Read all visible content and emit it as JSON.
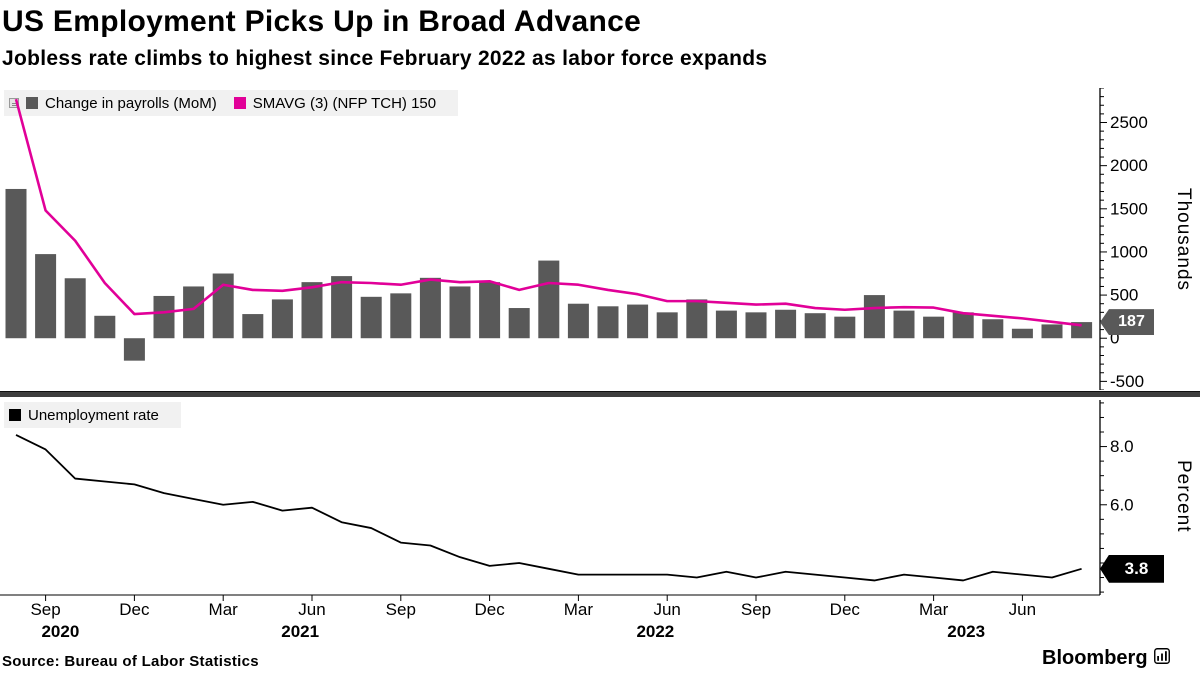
{
  "header": {
    "title": "US Employment Picks Up in Broad Advance",
    "subtitle": "Jobless rate climbs to highest since February 2022 as labor force expands"
  },
  "colors": {
    "bar": "#595959",
    "smavg": "#e10098",
    "unemployment": "#000000",
    "badge_payrolls": "#595959",
    "badge_unemployment": "#000000",
    "legend_bg": "#f1f1f1"
  },
  "top_chart": {
    "legend": [
      {
        "label": "Change in payrolls (MoM)",
        "color": "#595959"
      },
      {
        "label": "SMAVG (3) (NFP TCH) 150",
        "color": "#e10098"
      }
    ],
    "axis_label": "Thousands",
    "yticks": [
      {
        "value": 2500,
        "label": "2500"
      },
      {
        "value": 2000,
        "label": "2000"
      },
      {
        "value": 1500,
        "label": "1500"
      },
      {
        "value": 1000,
        "label": "1000"
      },
      {
        "value": 500,
        "label": "500"
      },
      {
        "value": 0,
        "label": "0"
      },
      {
        "value": -500,
        "label": "-500"
      }
    ],
    "last_value_label": "187"
  },
  "bottom_chart": {
    "legend": [
      {
        "label": "Unemployment rate",
        "color": "#000000"
      }
    ],
    "axis_label": "Percent",
    "yticks": [
      {
        "value": 8,
        "label": "8.0"
      },
      {
        "value": 6,
        "label": "6.0"
      }
    ],
    "last_value_label": "3.8"
  },
  "x_axis": {
    "months": [
      {
        "label": "Sep",
        "i": 1
      },
      {
        "label": "Dec",
        "i": 4
      },
      {
        "label": "Mar",
        "i": 7
      },
      {
        "label": "Jun",
        "i": 10
      },
      {
        "label": "Sep",
        "i": 13
      },
      {
        "label": "Dec",
        "i": 16
      },
      {
        "label": "Mar",
        "i": 19
      },
      {
        "label": "Jun",
        "i": 22
      },
      {
        "label": "Sep",
        "i": 25
      },
      {
        "label": "Dec",
        "i": 28
      },
      {
        "label": "Mar",
        "i": 31
      },
      {
        "label": "Jun",
        "i": 34
      }
    ],
    "years": [
      {
        "label": "2020",
        "i": 1.5
      },
      {
        "label": "2021",
        "i": 9.6
      },
      {
        "label": "2022",
        "i": 21.6
      },
      {
        "label": "2023",
        "i": 32.1
      }
    ]
  },
  "footer": {
    "source": "Source: Bureau of Labor Statistics",
    "brand": "Bloomberg"
  },
  "chart_data": [
    {
      "type": "bar",
      "title": "Change in payrolls (MoM)",
      "ylabel": "Thousands",
      "ylim": [
        -600,
        2900
      ],
      "legend_position": "top-left",
      "grid": false,
      "x": [
        "2020-08",
        "2020-09",
        "2020-10",
        "2020-11",
        "2020-12",
        "2021-01",
        "2021-02",
        "2021-03",
        "2021-04",
        "2021-05",
        "2021-06",
        "2021-07",
        "2021-08",
        "2021-09",
        "2021-10",
        "2021-11",
        "2021-12",
        "2022-01",
        "2022-02",
        "2022-03",
        "2022-04",
        "2022-05",
        "2022-06",
        "2022-07",
        "2022-08",
        "2022-09",
        "2022-10",
        "2022-11",
        "2022-12",
        "2023-01",
        "2023-02",
        "2023-03",
        "2023-04",
        "2023-05",
        "2023-06",
        "2023-07",
        "2023-08"
      ],
      "series": [
        {
          "name": "Change in payrolls (MoM)",
          "type": "bar",
          "values": [
            1730,
            975,
            695,
            260,
            -260,
            490,
            600,
            750,
            280,
            450,
            650,
            720,
            480,
            520,
            700,
            600,
            650,
            350,
            900,
            400,
            370,
            390,
            300,
            450,
            320,
            300,
            330,
            290,
            250,
            500,
            320,
            250,
            300,
            220,
            110,
            160,
            187
          ]
        },
        {
          "name": "SMAVG (3) (NFP TCH) 150",
          "type": "line",
          "values": [
            2770,
            1480,
            1130,
            640,
            280,
            300,
            340,
            620,
            560,
            550,
            590,
            650,
            640,
            620,
            680,
            650,
            660,
            560,
            640,
            620,
            560,
            510,
            430,
            430,
            410,
            390,
            400,
            350,
            330,
            350,
            360,
            355,
            290,
            260,
            230,
            190,
            150
          ]
        }
      ]
    },
    {
      "type": "line",
      "title": "Unemployment rate",
      "ylabel": "Percent",
      "ylim": [
        2.9,
        9.6
      ],
      "legend_position": "top-left",
      "grid": false,
      "x": [
        "2020-08",
        "2020-09",
        "2020-10",
        "2020-11",
        "2020-12",
        "2021-01",
        "2021-02",
        "2021-03",
        "2021-04",
        "2021-05",
        "2021-06",
        "2021-07",
        "2021-08",
        "2021-09",
        "2021-10",
        "2021-11",
        "2021-12",
        "2022-01",
        "2022-02",
        "2022-03",
        "2022-04",
        "2022-05",
        "2022-06",
        "2022-07",
        "2022-08",
        "2022-09",
        "2022-10",
        "2022-11",
        "2022-12",
        "2023-01",
        "2023-02",
        "2023-03",
        "2023-04",
        "2023-05",
        "2023-06",
        "2023-07",
        "2023-08"
      ],
      "series": [
        {
          "name": "Unemployment rate",
          "type": "line",
          "values": [
            8.4,
            7.9,
            6.9,
            6.8,
            6.7,
            6.4,
            6.2,
            6.0,
            6.1,
            5.8,
            5.9,
            5.4,
            5.2,
            4.7,
            4.6,
            4.2,
            3.9,
            4.0,
            3.8,
            3.6,
            3.6,
            3.6,
            3.6,
            3.5,
            3.7,
            3.5,
            3.7,
            3.6,
            3.5,
            3.4,
            3.6,
            3.5,
            3.4,
            3.7,
            3.6,
            3.5,
            3.8
          ]
        }
      ]
    }
  ]
}
